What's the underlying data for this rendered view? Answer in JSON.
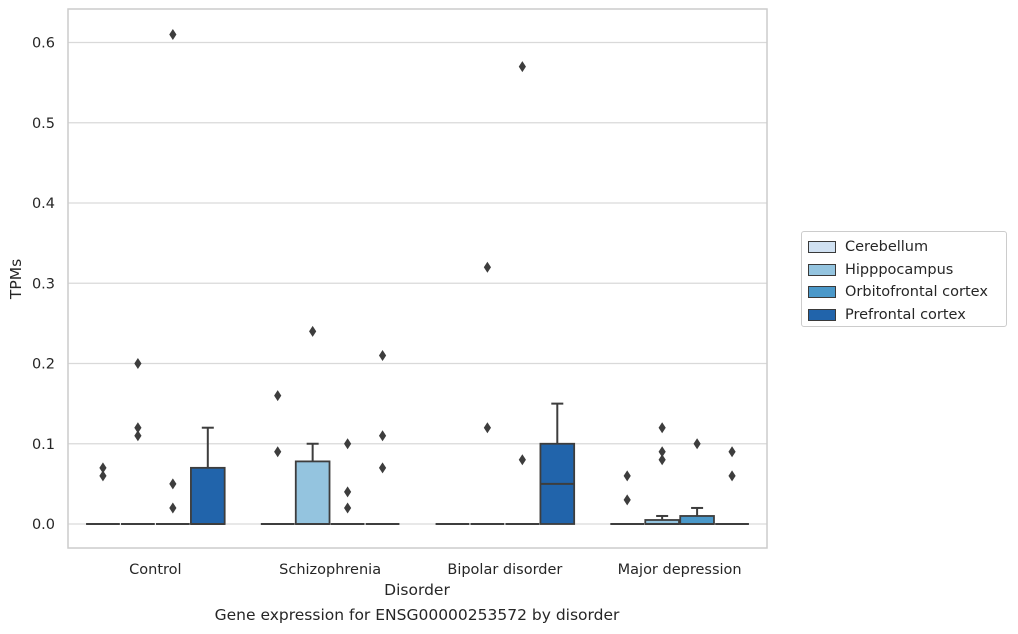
{
  "chart_data": {
    "type": "box",
    "caption": "Gene expression for ENSG00000253572 by disorder",
    "xlabel": "Disorder",
    "ylabel": "TPMs",
    "ylim": [
      -0.03,
      0.64
    ],
    "yticks": [
      0.0,
      0.1,
      0.2,
      0.3,
      0.4,
      0.5,
      0.6
    ],
    "ytick_labels": [
      "0.0",
      "0.1",
      "0.2",
      "0.3",
      "0.4",
      "0.5",
      "0.6"
    ],
    "grid": "horizontal",
    "legend_position": "right",
    "categories": [
      "Control",
      "Schizophrenia",
      "Bipolar disorder",
      "Major depression"
    ],
    "series": [
      {
        "name": "Cerebellum",
        "color": "#d0e1f2",
        "boxes": [
          {
            "q1": 0,
            "median": 0,
            "q3": 0,
            "whisker_low": 0,
            "whisker_high": 0,
            "outliers": [
              0.06,
              0.07
            ]
          },
          {
            "q1": 0,
            "median": 0,
            "q3": 0,
            "whisker_low": 0,
            "whisker_high": 0,
            "outliers": [
              0.09,
              0.16
            ]
          },
          {
            "q1": 0,
            "median": 0,
            "q3": 0,
            "whisker_low": 0,
            "whisker_high": 0,
            "outliers": []
          },
          {
            "q1": 0,
            "median": 0,
            "q3": 0,
            "whisker_low": 0,
            "whisker_high": 0,
            "outliers": [
              0.03,
              0.06
            ]
          }
        ]
      },
      {
        "name": "Hipppocampus",
        "color": "#94c4df",
        "boxes": [
          {
            "q1": 0,
            "median": 0,
            "q3": 0,
            "whisker_low": 0,
            "whisker_high": 0,
            "outliers": [
              0.11,
              0.12,
              0.2
            ]
          },
          {
            "q1": 0,
            "median": 0,
            "q3": 0.078,
            "whisker_low": 0,
            "whisker_high": 0.1,
            "outliers": [
              0.24
            ]
          },
          {
            "q1": 0,
            "median": 0,
            "q3": 0,
            "whisker_low": 0,
            "whisker_high": 0,
            "outliers": [
              0.12,
              0.32
            ]
          },
          {
            "q1": 0,
            "median": 0,
            "q3": 0.005,
            "whisker_low": 0,
            "whisker_high": 0.01,
            "outliers": [
              0.08,
              0.09,
              0.12
            ]
          }
        ]
      },
      {
        "name": "Orbitofrontal cortex",
        "color": "#4a98c9",
        "boxes": [
          {
            "q1": 0,
            "median": 0,
            "q3": 0,
            "whisker_low": 0,
            "whisker_high": 0,
            "outliers": [
              0.02,
              0.05,
              0.61
            ]
          },
          {
            "q1": 0,
            "median": 0,
            "q3": 0,
            "whisker_low": 0,
            "whisker_high": 0,
            "outliers": [
              0.02,
              0.04,
              0.1
            ]
          },
          {
            "q1": 0,
            "median": 0,
            "q3": 0,
            "whisker_low": 0,
            "whisker_high": 0,
            "outliers": [
              0.08,
              0.57
            ]
          },
          {
            "q1": 0,
            "median": 0,
            "q3": 0.01,
            "whisker_low": 0,
            "whisker_high": 0.02,
            "outliers": [
              0.1
            ]
          }
        ]
      },
      {
        "name": "Prefrontal cortex",
        "color": "#2164ab",
        "boxes": [
          {
            "q1": 0,
            "median": 0,
            "q3": 0.07,
            "whisker_low": 0,
            "whisker_high": 0.12,
            "outliers": []
          },
          {
            "q1": 0,
            "median": 0,
            "q3": 0,
            "whisker_low": 0,
            "whisker_high": 0,
            "outliers": [
              0.07,
              0.11,
              0.21
            ]
          },
          {
            "q1": 0,
            "median": 0.05,
            "q3": 0.1,
            "whisker_low": 0,
            "whisker_high": 0.15,
            "outliers": []
          },
          {
            "q1": 0,
            "median": 0,
            "q3": 0,
            "whisker_low": 0,
            "whisker_high": 0,
            "outliers": [
              0.06,
              0.09
            ]
          }
        ]
      }
    ]
  }
}
